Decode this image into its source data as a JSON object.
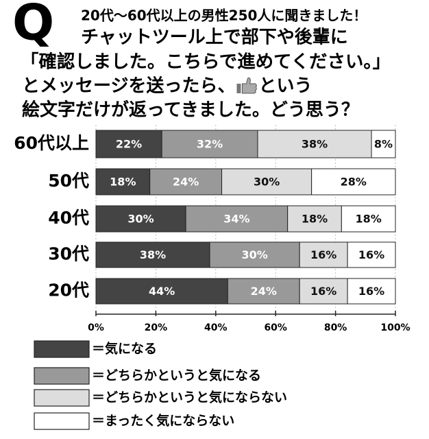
{
  "chart_data": {
    "type": "stacked_barh",
    "marker": "Q",
    "subtitle": "20代〜60代以上の男性250人に聞きました！",
    "question": [
      "チャットツール上で部下や後輩に",
      "「確認しました。こちらで進めてください。」",
      "とメッセージを送ったら、",
      "という",
      "絵文字だけが返ってきました。どう思う？"
    ],
    "categories": [
      "60代以上",
      "50代",
      "40代",
      "30代",
      "20代"
    ],
    "series": [
      {
        "name": "＝気になる",
        "color": "#444444",
        "values": [
          22,
          18,
          30,
          38,
          44
        ],
        "value_labels": [
          "22%",
          "18%",
          "30%",
          "38%",
          "44%"
        ]
      },
      {
        "name": "＝どちらかというと気になる",
        "color": "#999999",
        "values": [
          32,
          24,
          34,
          30,
          24
        ],
        "value_labels": [
          "32%",
          "24%",
          "34%",
          "30%",
          "24%"
        ]
      },
      {
        "name": "＝どちらかというと気にならない",
        "color": "#dddddd",
        "values": [
          38,
          30,
          18,
          16,
          16
        ],
        "value_labels": [
          "38%",
          "30%",
          "18%",
          "16%",
          "16%"
        ]
      },
      {
        "name": "＝まったく気にならない",
        "color": "#ffffff",
        "values": [
          8,
          28,
          18,
          16,
          16
        ],
        "value_labels": [
          "8%",
          "28%",
          "18%",
          "16%",
          "16%"
        ]
      }
    ],
    "xlim": [
      0,
      100
    ],
    "xticks": [
      {
        "value": 0,
        "label": "0%"
      },
      {
        "value": 20,
        "label": "20%"
      },
      {
        "value": 40,
        "label": "40%"
      },
      {
        "value": 60,
        "label": "60%"
      },
      {
        "value": 80,
        "label": "80%"
      },
      {
        "value": 100,
        "label": "100%"
      }
    ]
  }
}
